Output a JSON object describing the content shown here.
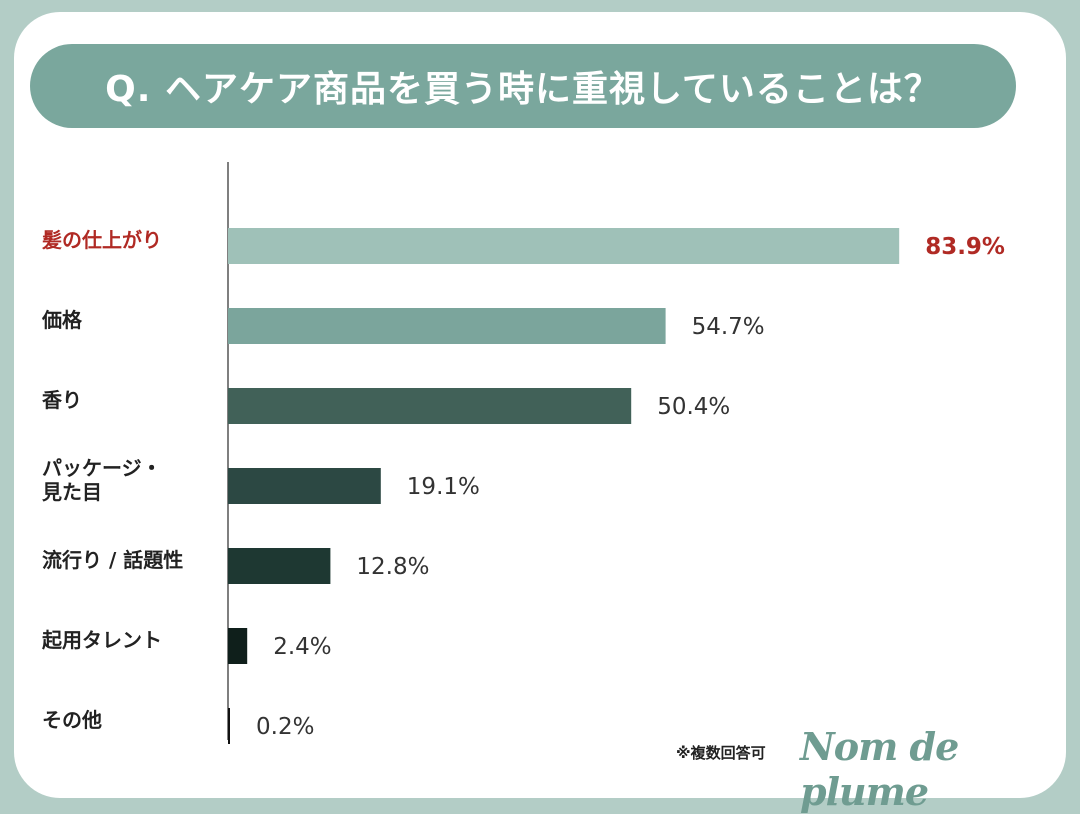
{
  "chart_data": {
    "type": "bar",
    "orientation": "horizontal",
    "title": "Q. ヘアケア商品を買う時に重視していることは？",
    "categories": [
      "髪の仕上がり",
      "価格",
      "香り",
      "パッケージ・見た目",
      "流行り / 話題性",
      "起用タレント",
      "その他"
    ],
    "category_lines": [
      [
        "髪の仕上がり"
      ],
      [
        "価格"
      ],
      [
        "香り"
      ],
      [
        "パッケージ・",
        "見た目"
      ],
      [
        "流行り / 話題性"
      ],
      [
        "起用タレント"
      ],
      [
        "その他"
      ]
    ],
    "values": [
      83.9,
      54.7,
      50.4,
      19.1,
      12.8,
      2.4,
      0.2
    ],
    "value_labels": [
      "83.9%",
      "54.7%",
      "50.4%",
      "19.1%",
      "12.8%",
      "2.4%",
      "0.2%"
    ],
    "unit": "%",
    "xlim": [
      0,
      100
    ],
    "grid": false,
    "colors": [
      "#9fc1b8",
      "#7ba59c",
      "#416158",
      "#2c4843",
      "#1e3832",
      "#0f1f1b",
      "#111111"
    ],
    "highlight_color": "#b02a24",
    "highlight_index": 0
  },
  "footer": {
    "note": "※複数回答可",
    "logo": "Nom de plume"
  }
}
